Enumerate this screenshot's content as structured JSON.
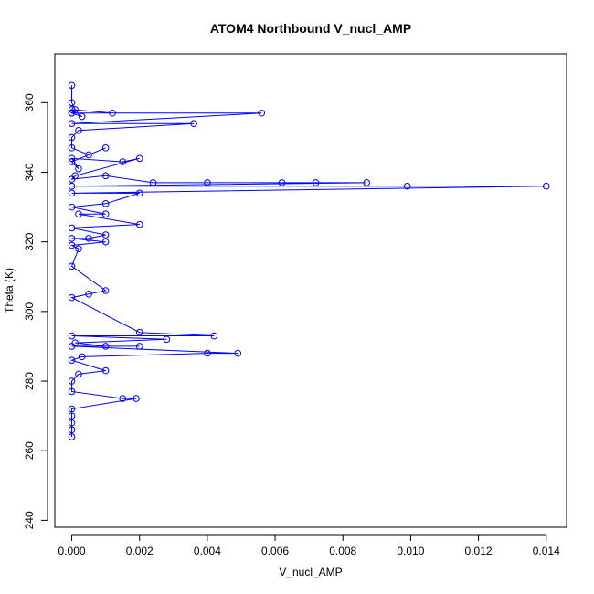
{
  "chart_data": {
    "type": "scatter",
    "title": "ATOM4 Northbound V_nucl_AMP",
    "xlabel": "V_nucl_AMP",
    "ylabel": "Theta (K)",
    "xlim": [
      -0.0005,
      0.0146
    ],
    "ylim": [
      238,
      374
    ],
    "xticks": [
      0.0,
      0.002,
      0.004,
      0.006,
      0.008,
      0.01,
      0.012,
      0.014
    ],
    "xtick_labels": [
      "0.000",
      "0.002",
      "0.004",
      "0.006",
      "0.008",
      "0.010",
      "0.012",
      "0.014"
    ],
    "yticks": [
      240,
      260,
      280,
      300,
      320,
      340,
      360
    ],
    "ytick_labels": [
      "240",
      "260",
      "280",
      "300",
      "320",
      "340",
      "360"
    ],
    "grid": false,
    "marker": "open-circle",
    "connected": true,
    "series_color": "#0000ff",
    "series": [
      {
        "x": [
          0.0,
          0.0,
          0.0001,
          0.0,
          0.0003,
          0.0,
          0.0012,
          0.0,
          0.0,
          0.0056,
          0.0,
          0.0036,
          0.0002,
          0.0,
          0.0,
          0.0005,
          0.001,
          0.0,
          0.0002,
          0.0,
          0.0015,
          0.002,
          0.0001,
          0.0,
          0.001,
          0.0024,
          0.004,
          0.0062,
          0.0072,
          0.0087,
          0.0,
          0.0099,
          0.014,
          0.0,
          0.002,
          0.001,
          0.0,
          0.001,
          0.0002,
          0.002,
          0.0,
          0.001,
          0.0005,
          0.0,
          0.001,
          0.0,
          0.0002,
          0.0,
          0.001,
          0.0005,
          0.0,
          0.002,
          0.0042,
          0.0,
          0.0028,
          0.0001,
          0.001,
          0.002,
          0.0,
          0.0049,
          0.004,
          0.0003,
          0.0,
          0.001,
          0.0002,
          0.0,
          0.0,
          0.0015,
          0.0019,
          0.0,
          0.0,
          0.0,
          0.0,
          0.0
        ],
        "y": [
          365,
          360,
          358,
          357,
          356,
          358,
          357,
          357,
          357,
          357,
          354,
          354,
          352,
          350,
          347,
          345,
          347,
          343,
          341,
          344,
          343,
          344,
          339,
          338,
          339,
          337,
          337,
          337,
          337,
          337,
          336,
          336,
          336,
          334,
          334,
          331,
          330,
          328,
          328,
          325,
          324,
          322,
          321,
          321,
          320,
          319,
          318,
          313,
          306,
          305,
          304,
          294,
          293,
          293,
          292,
          291,
          290,
          290,
          290,
          288,
          288,
          287,
          286,
          283,
          282,
          280,
          277,
          275,
          275,
          272,
          270,
          268,
          266,
          264
        ]
      }
    ]
  }
}
